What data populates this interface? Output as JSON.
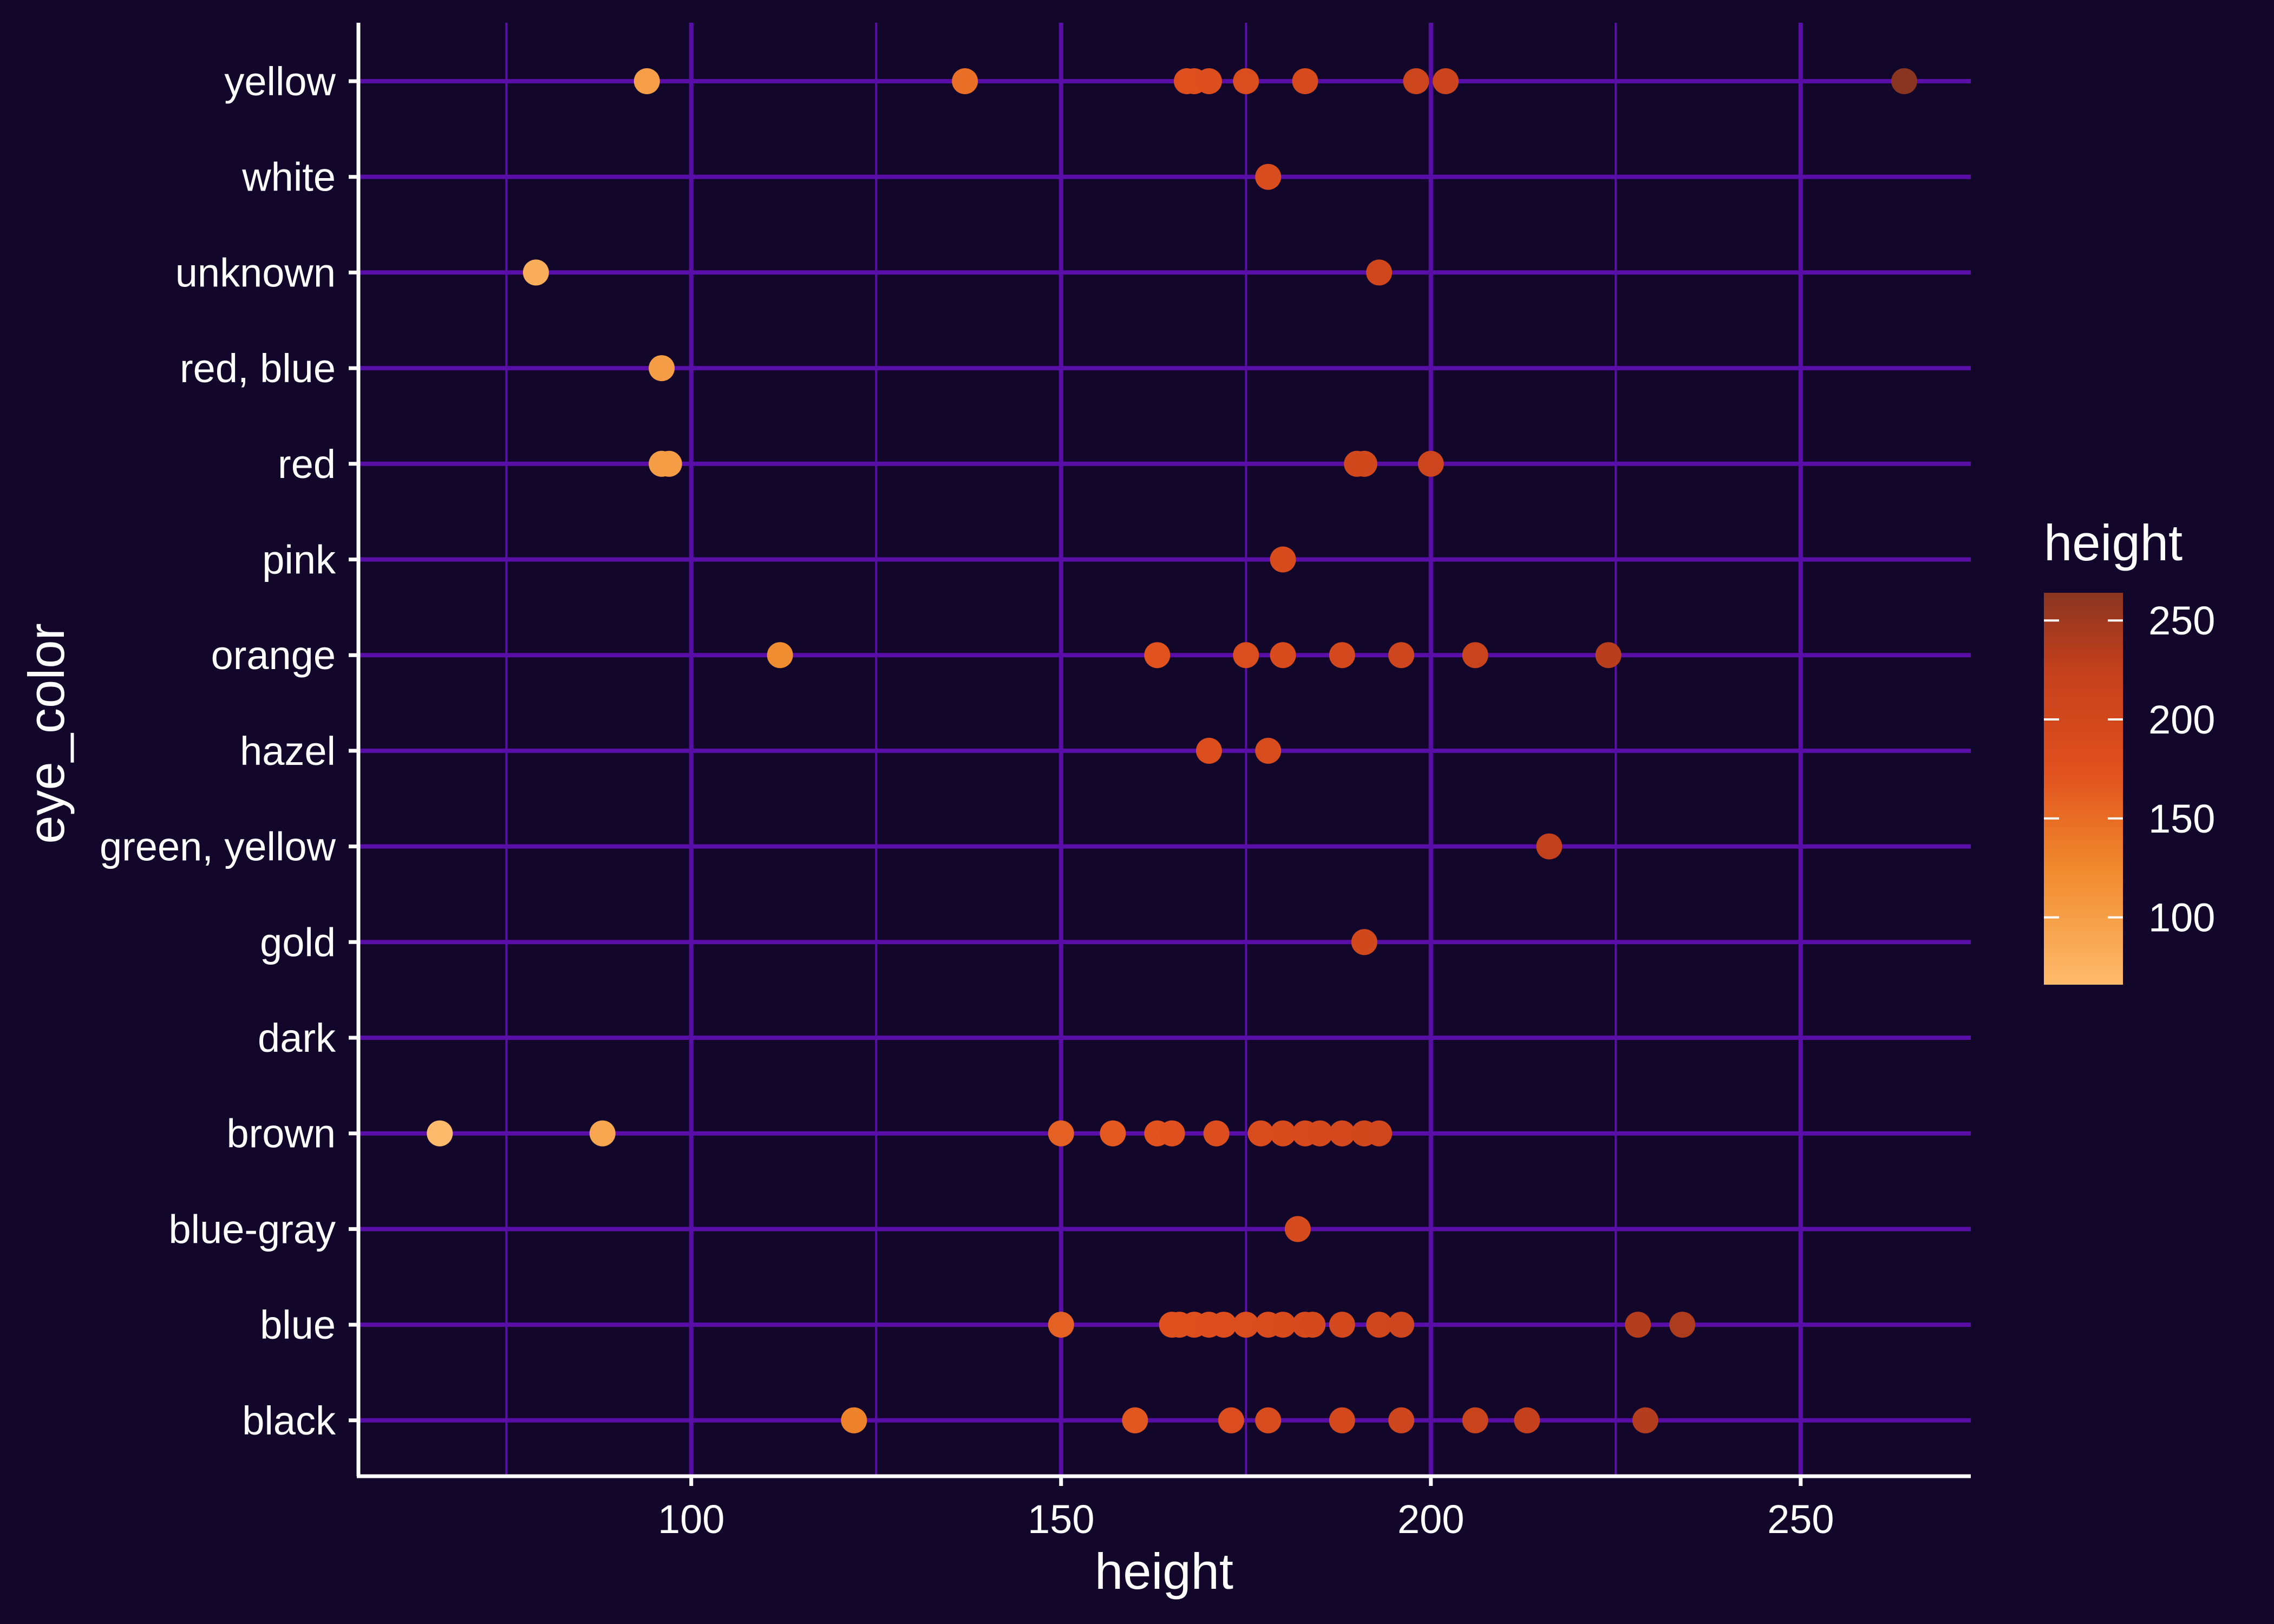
{
  "chart_data": {
    "type": "scatter",
    "xlabel": "height",
    "ylabel": "eye_color",
    "xlim": [
      55,
      273
    ],
    "x_ticks": [
      100,
      150,
      200,
      250
    ],
    "categories": [
      "black",
      "blue",
      "blue-gray",
      "brown",
      "dark",
      "gold",
      "green, yellow",
      "hazel",
      "orange",
      "pink",
      "red",
      "red, blue",
      "unknown",
      "white",
      "yellow"
    ],
    "points": {
      "yellow": [
        94,
        137,
        167,
        168,
        170,
        175,
        183,
        198,
        202,
        264
      ],
      "white": [
        178
      ],
      "unknown": [
        79,
        193
      ],
      "red, blue": [
        96
      ],
      "red": [
        96,
        97,
        190,
        191,
        200
      ],
      "pink": [
        180
      ],
      "orange": [
        112,
        163,
        175,
        180,
        188,
        196,
        206,
        224
      ],
      "hazel": [
        170,
        178
      ],
      "green, yellow": [
        216
      ],
      "gold": [
        191
      ],
      "dark": [],
      "brown": [
        66,
        88,
        150,
        157,
        163,
        165,
        171,
        177,
        180,
        183,
        185,
        188,
        191,
        193
      ],
      "blue-gray": [
        182
      ],
      "blue": [
        150,
        165,
        166,
        168,
        170,
        172,
        175,
        178,
        180,
        183,
        184,
        188,
        193,
        196,
        228,
        234
      ],
      "black": [
        122,
        160,
        173,
        178,
        188,
        196,
        206,
        213,
        229
      ]
    },
    "legend": {
      "title": "height",
      "position": "right",
      "breaks": [
        100,
        150,
        200,
        250
      ],
      "range": [
        66,
        264
      ],
      "colors": [
        "#fdbb6b",
        "#f0892d",
        "#e0501e",
        "#c4401c",
        "#8a3522"
      ]
    },
    "colors": {
      "background": "#12072a",
      "grid": "#5a0ea8",
      "axis": "#ffffff",
      "text": "#ffffff"
    },
    "grid": true
  }
}
